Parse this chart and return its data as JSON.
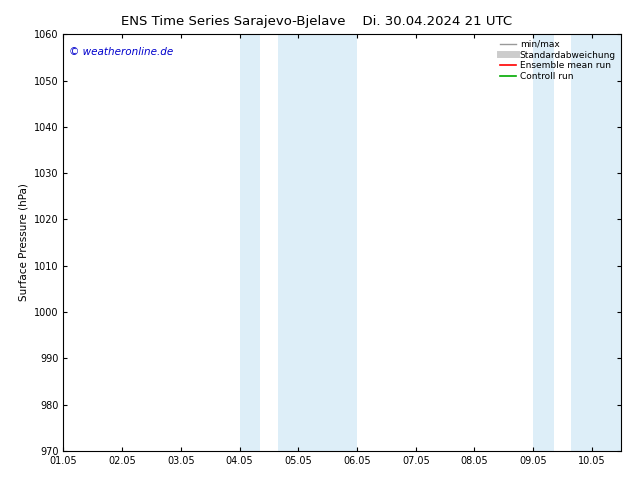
{
  "title_left": "ENS Time Series Sarajevo-Bjelave",
  "title_right": "Di. 30.04.2024 21 UTC",
  "ylabel": "Surface Pressure (hPa)",
  "ylim": [
    970,
    1060
  ],
  "yticks": [
    970,
    980,
    990,
    1000,
    1010,
    1020,
    1030,
    1040,
    1050,
    1060
  ],
  "xlim": [
    0.0,
    9.5
  ],
  "xtick_labels": [
    "01.05",
    "02.05",
    "03.05",
    "04.05",
    "05.05",
    "06.05",
    "07.05",
    "08.05",
    "09.05",
    "10.05"
  ],
  "xtick_positions": [
    0.0,
    1.0,
    2.0,
    3.0,
    4.0,
    5.0,
    6.0,
    7.0,
    8.0,
    9.0
  ],
  "shade_bands": [
    {
      "xmin": 3.0,
      "xmax": 3.35
    },
    {
      "xmin": 3.65,
      "xmax": 5.0
    },
    {
      "xmin": 8.0,
      "xmax": 8.35
    },
    {
      "xmin": 8.65,
      "xmax": 9.5
    }
  ],
  "shade_color": "#ddeef8",
  "background_color": "#ffffff",
  "plot_background": "#ffffff",
  "copyright_text": "© weatheronline.de",
  "legend_items": [
    {
      "label": "min/max",
      "color": "#999999",
      "lw": 1.0,
      "ls": "-"
    },
    {
      "label": "Standardabweichung",
      "color": "#cccccc",
      "lw": 5,
      "ls": "-"
    },
    {
      "label": "Ensemble mean run",
      "color": "#ff0000",
      "lw": 1.2,
      "ls": "-"
    },
    {
      "label": "Controll run",
      "color": "#00aa00",
      "lw": 1.2,
      "ls": "-"
    }
  ],
  "title_fontsize": 9.5,
  "tick_fontsize": 7,
  "ylabel_fontsize": 7.5,
  "copyright_color": "#0000cc",
  "copyright_fontsize": 7.5
}
